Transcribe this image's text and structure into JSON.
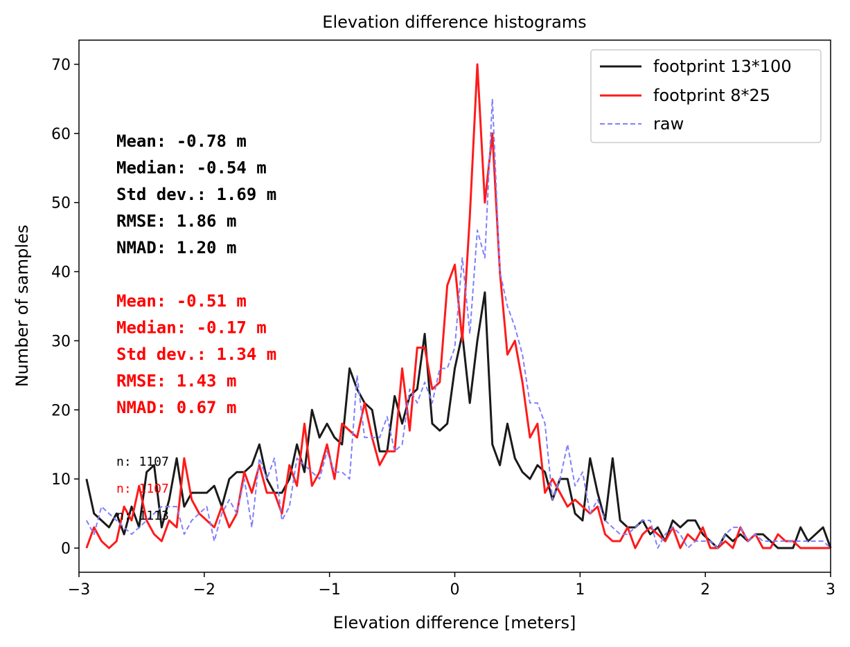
{
  "chart_data": {
    "type": "line",
    "title": "Elevation difference histograms",
    "xlabel": "Elevation difference [meters]",
    "ylabel": "Number of samples",
    "xlim": [
      -3,
      3
    ],
    "ylim": [
      -3.5,
      73.5
    ],
    "xticks": [
      -3,
      -2,
      -1,
      0,
      1,
      2,
      3
    ],
    "xtick_labels": [
      "−3",
      "−2",
      "−1",
      "0",
      "1",
      "2",
      "3"
    ],
    "yticks": [
      0,
      10,
      20,
      30,
      40,
      50,
      60,
      70
    ],
    "ytick_labels": [
      "0",
      "10",
      "20",
      "30",
      "40",
      "50",
      "60",
      "70"
    ],
    "grid": false,
    "legend_position": "top-right",
    "x_start": -2.94,
    "x_step": 0.06,
    "series": [
      {
        "name": "footprint 13*100",
        "color": "#1a1a1a",
        "style": "solid",
        "values": [
          10,
          5,
          4,
          3,
          5,
          2,
          6,
          3,
          11,
          12,
          3,
          7,
          13,
          6,
          8,
          8,
          8,
          9,
          6,
          10,
          11,
          11,
          12,
          15,
          10,
          8,
          8,
          10,
          15,
          11,
          20,
          16,
          18,
          16,
          15,
          26,
          23,
          21,
          20,
          14,
          14,
          22,
          18,
          22,
          23,
          31,
          18,
          17,
          18,
          26,
          31,
          21,
          30,
          37,
          15,
          12,
          18,
          13,
          11,
          10,
          12,
          11,
          7,
          10,
          10,
          5,
          4,
          13,
          8,
          4,
          13,
          4,
          3,
          3,
          4,
          2,
          3,
          1,
          4,
          3,
          4,
          4,
          2,
          1,
          0,
          2,
          1,
          2,
          1,
          2,
          2,
          1,
          0,
          0,
          0,
          3,
          1,
          2,
          3,
          0
        ]
      },
      {
        "name": "footprint 8*25",
        "color": "#ff1a1a",
        "style": "solid",
        "values": [
          0,
          3,
          1,
          0,
          1,
          6,
          4,
          9,
          4,
          2,
          1,
          4,
          3,
          13,
          7,
          5,
          4,
          3,
          6,
          3,
          5,
          11,
          8,
          12,
          8,
          8,
          5,
          12,
          9,
          18,
          9,
          11,
          15,
          10,
          18,
          17,
          16,
          21,
          16,
          12,
          14,
          14,
          26,
          17,
          29,
          29,
          23,
          24,
          38,
          41,
          30,
          48,
          70,
          50,
          60,
          40,
          28,
          30,
          24,
          16,
          18,
          8,
          10,
          8,
          6,
          7,
          6,
          5,
          6,
          2,
          1,
          1,
          3,
          0,
          2,
          3,
          2,
          1,
          3,
          0,
          2,
          1,
          3,
          0,
          0,
          1,
          0,
          3,
          1,
          2,
          0,
          0,
          2,
          1,
          1,
          0,
          0,
          0,
          0,
          0
        ]
      },
      {
        "name": "raw",
        "color": "#7f7fff",
        "style": "dashed",
        "values": [
          4,
          2,
          6,
          5,
          4,
          3,
          2,
          3,
          4,
          5,
          6,
          6,
          6,
          2,
          4,
          5,
          6,
          1,
          5,
          7,
          5,
          10,
          3,
          13,
          10,
          13,
          4,
          6,
          13,
          12,
          11,
          10,
          14,
          11,
          11,
          10,
          25,
          16,
          16,
          16,
          19,
          14,
          15,
          23,
          21,
          24,
          21,
          26,
          26,
          29,
          42,
          31,
          46,
          42,
          65,
          40,
          35,
          32,
          28,
          21,
          21,
          18,
          7,
          10,
          15,
          9,
          11,
          5,
          7,
          4,
          3,
          2,
          2,
          3,
          4,
          4,
          0,
          2,
          3,
          2,
          0,
          1,
          1,
          1,
          0,
          2,
          3,
          3,
          1,
          2,
          1,
          1,
          1,
          1,
          1,
          1,
          1,
          1,
          1,
          0
        ]
      }
    ],
    "stats": [
      {
        "color": "#000000",
        "lines": [
          "Mean: -0.78 m",
          "Median: -0.54 m",
          "Std dev.: 1.69 m",
          "RMSE: 1.86 m",
          "NMAD: 1.20 m"
        ]
      },
      {
        "color": "#ff0000",
        "lines": [
          "Mean: -0.51 m",
          "Median: -0.17 m",
          "Std dev.: 1.34 m",
          "RMSE: 1.43 m",
          "NMAD: 0.67 m"
        ]
      }
    ],
    "counts": [
      {
        "text": "n: 1107",
        "color": "#000000"
      },
      {
        "text": "n: 1107",
        "color": "#ff0000"
      },
      {
        "text": "n: 1113",
        "color": "#000000"
      }
    ]
  }
}
